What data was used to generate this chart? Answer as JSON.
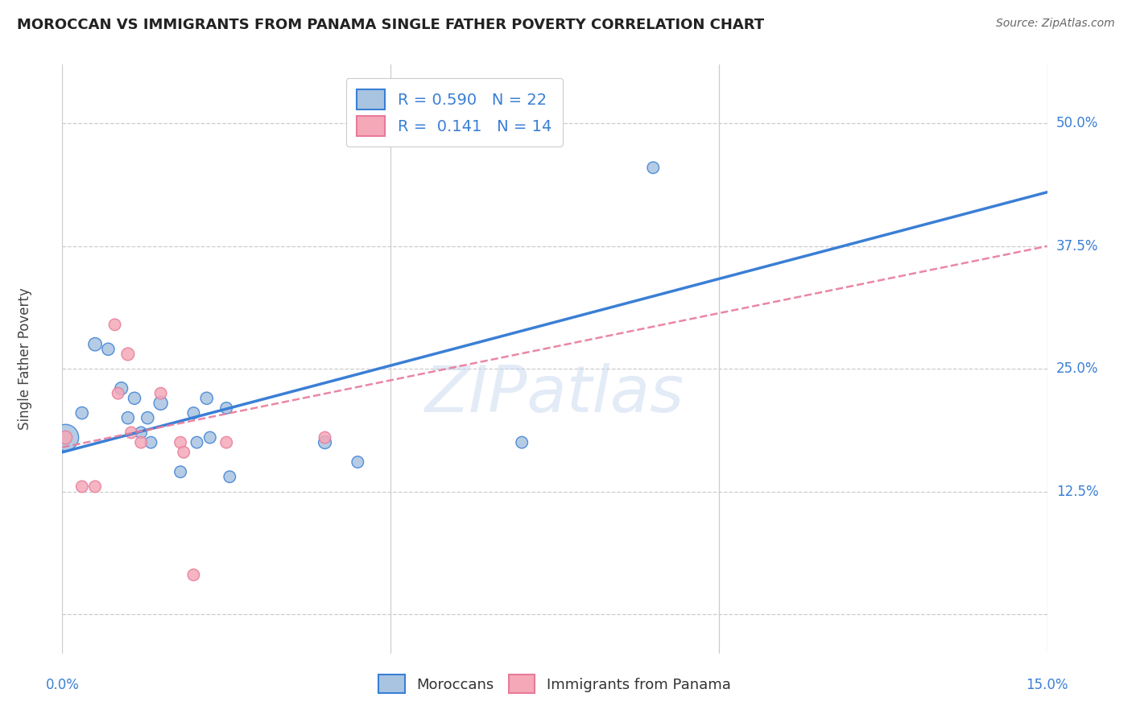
{
  "title": "MOROCCAN VS IMMIGRANTS FROM PANAMA SINGLE FATHER POVERTY CORRELATION CHART",
  "source": "Source: ZipAtlas.com",
  "ylabel": "Single Father Poverty",
  "ytick_labels": [
    "50.0%",
    "37.5%",
    "25.0%",
    "12.5%"
  ],
  "ytick_values": [
    50.0,
    37.5,
    25.0,
    12.5
  ],
  "xlim": [
    0.0,
    15.0
  ],
  "ylim": [
    -4.0,
    56.0
  ],
  "moroccan_R": 0.59,
  "moroccan_N": 22,
  "panama_R": 0.141,
  "panama_N": 14,
  "moroccan_color": "#a8c4e0",
  "panama_color": "#f4a8b8",
  "moroccan_line_color": "#3a7fd5",
  "panama_line_color": "#e87a9a",
  "moroccan_x": [
    0.05,
    0.3,
    0.5,
    0.7,
    0.9,
    1.0,
    1.1,
    1.2,
    1.3,
    1.35,
    1.5,
    1.8,
    2.0,
    2.05,
    2.2,
    2.25,
    2.5,
    2.55,
    4.0,
    4.5,
    7.0,
    9.0
  ],
  "moroccan_y": [
    18.0,
    20.5,
    27.5,
    27.0,
    23.0,
    20.0,
    22.0,
    18.5,
    20.0,
    17.5,
    21.5,
    14.5,
    20.5,
    17.5,
    22.0,
    18.0,
    21.0,
    14.0,
    17.5,
    15.5,
    17.5,
    45.5
  ],
  "moroccan_size": [
    550,
    120,
    140,
    120,
    130,
    120,
    120,
    110,
    120,
    110,
    150,
    110,
    110,
    110,
    120,
    110,
    110,
    110,
    130,
    110,
    110,
    110
  ],
  "panama_x": [
    0.05,
    0.3,
    0.5,
    0.8,
    0.85,
    1.0,
    1.05,
    1.2,
    1.5,
    1.8,
    1.85,
    2.0,
    2.5,
    4.0
  ],
  "panama_y": [
    18.0,
    13.0,
    13.0,
    29.5,
    22.5,
    26.5,
    18.5,
    17.5,
    22.5,
    17.5,
    16.5,
    4.0,
    17.5,
    18.0
  ],
  "panama_size": [
    140,
    110,
    110,
    110,
    110,
    130,
    110,
    110,
    110,
    110,
    110,
    110,
    110,
    110
  ],
  "watermark": "ZIPatlas",
  "legend_label_moroccan": "Moroccans",
  "legend_label_panama": "Immigrants from Panama",
  "mor_line_x": [
    0.0,
    15.0
  ],
  "mor_line_y": [
    16.5,
    43.0
  ],
  "pan_line_x": [
    0.0,
    15.0
  ],
  "pan_line_y": [
    17.0,
    37.5
  ]
}
